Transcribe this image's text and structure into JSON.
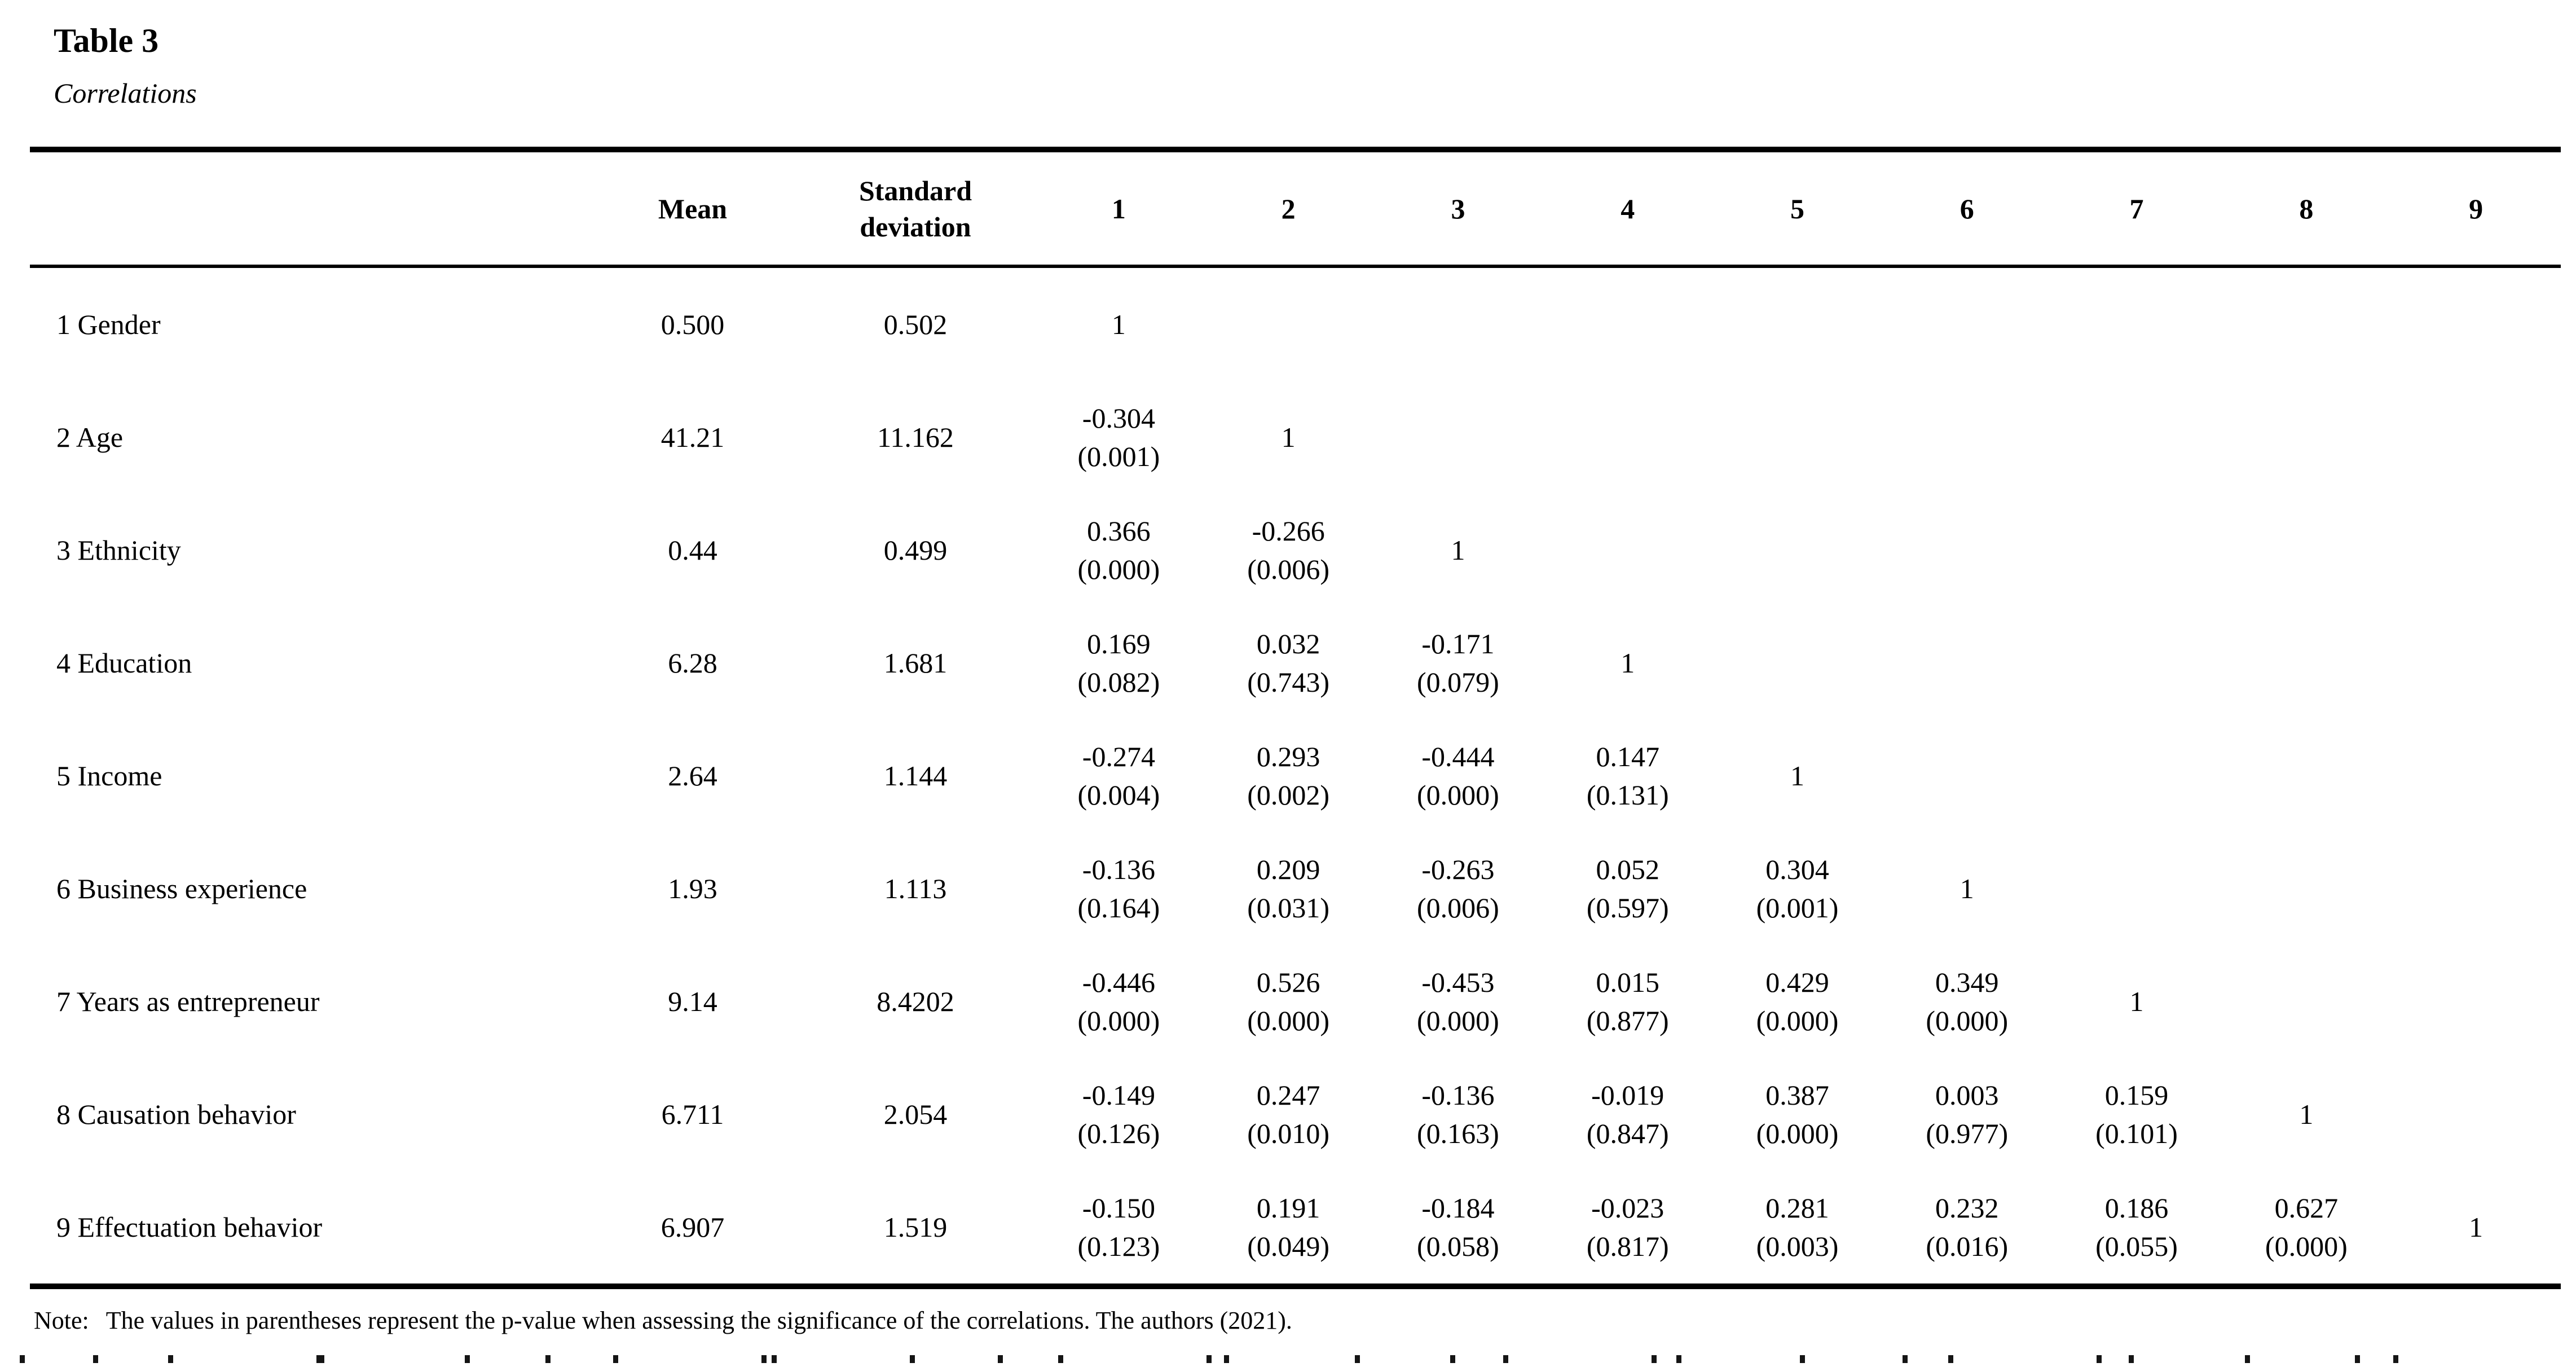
{
  "page": {
    "title": "Table 3",
    "subtitle": "Correlations"
  },
  "table": {
    "header": {
      "mean": "Mean",
      "sd": "Standard deviation",
      "nums": [
        "1",
        "2",
        "3",
        "4",
        "5",
        "6",
        "7",
        "8",
        "9"
      ]
    },
    "rows": [
      {
        "label": "1 Gender",
        "mean": "0.500",
        "sd": "0.502",
        "corr": [
          {
            "r": "1"
          },
          {},
          {},
          {},
          {},
          {},
          {},
          {},
          {}
        ]
      },
      {
        "label": "2 Age",
        "mean": "41.21",
        "sd": "11.162",
        "corr": [
          {
            "r": "-0.304",
            "p": "(0.001)"
          },
          {
            "r": "1"
          },
          {},
          {},
          {},
          {},
          {},
          {},
          {}
        ]
      },
      {
        "label": "3 Ethnicity",
        "mean": "0.44",
        "sd": "0.499",
        "corr": [
          {
            "r": "0.366",
            "p": "(0.000)"
          },
          {
            "r": "-0.266",
            "p": "(0.006)"
          },
          {
            "r": "1"
          },
          {},
          {},
          {},
          {},
          {},
          {}
        ]
      },
      {
        "label": "4 Education",
        "mean": "6.28",
        "sd": "1.681",
        "corr": [
          {
            "r": "0.169",
            "p": "(0.082)"
          },
          {
            "r": "0.032",
            "p": "(0.743)"
          },
          {
            "r": "-0.171",
            "p": "(0.079)"
          },
          {
            "r": "1"
          },
          {},
          {},
          {},
          {},
          {}
        ]
      },
      {
        "label": "5 Income",
        "mean": "2.64",
        "sd": "1.144",
        "corr": [
          {
            "r": "-0.274",
            "p": "(0.004)"
          },
          {
            "r": "0.293",
            "p": "(0.002)"
          },
          {
            "r": "-0.444",
            "p": "(0.000)"
          },
          {
            "r": "0.147",
            "p": "(0.131)"
          },
          {
            "r": "1"
          },
          {},
          {},
          {},
          {}
        ]
      },
      {
        "label": "6 Business experience",
        "mean": "1.93",
        "sd": "1.113",
        "corr": [
          {
            "r": "-0.136",
            "p": "(0.164)"
          },
          {
            "r": "0.209",
            "p": "(0.031)"
          },
          {
            "r": "-0.263",
            "p": "(0.006)"
          },
          {
            "r": "0.052",
            "p": "(0.597)"
          },
          {
            "r": "0.304",
            "p": "(0.001)"
          },
          {
            "r": "1"
          },
          {},
          {},
          {}
        ]
      },
      {
        "label": "7 Years as entrepreneur",
        "mean": "9.14",
        "sd": "8.4202",
        "corr": [
          {
            "r": "-0.446",
            "p": "(0.000)"
          },
          {
            "r": "0.526",
            "p": "(0.000)"
          },
          {
            "r": "-0.453",
            "p": "(0.000)"
          },
          {
            "r": "0.015",
            "p": "(0.877)"
          },
          {
            "r": "0.429",
            "p": "(0.000)"
          },
          {
            "r": "0.349",
            "p": "(0.000)"
          },
          {
            "r": "1"
          },
          {},
          {}
        ]
      },
      {
        "label": "8 Causation behavior",
        "mean": "6.711",
        "sd": "2.054",
        "corr": [
          {
            "r": "-0.149",
            "p": "(0.126)"
          },
          {
            "r": "0.247",
            "p": "(0.010)"
          },
          {
            "r": "-0.136",
            "p": "(0.163)"
          },
          {
            "r": "-0.019",
            "p": "(0.847)"
          },
          {
            "r": "0.387",
            "p": "(0.000)"
          },
          {
            "r": "0.003",
            "p": "(0.977)"
          },
          {
            "r": "0.159",
            "p": "(0.101)"
          },
          {
            "r": "1"
          },
          {}
        ]
      },
      {
        "label": "9 Effectuation behavior",
        "mean": "6.907",
        "sd": "1.519",
        "corr": [
          {
            "r": "-0.150",
            "p": "(0.123)"
          },
          {
            "r": "0.191",
            "p": "(0.049)"
          },
          {
            "r": "-0.184",
            "p": "(0.058)"
          },
          {
            "r": "-0.023",
            "p": "(0.817)"
          },
          {
            "r": "0.281",
            "p": "(0.003)"
          },
          {
            "r": "0.232",
            "p": "(0.016)"
          },
          {
            "r": "0.186",
            "p": "(0.055)"
          },
          {
            "r": "0.627",
            "p": "(0.000)"
          },
          {
            "r": "1"
          }
        ]
      }
    ]
  },
  "note": {
    "prefix": "Note:",
    "text": "The values in parentheses represent the p-value when assessing the significance of the correlations. The authors (2021)."
  }
}
